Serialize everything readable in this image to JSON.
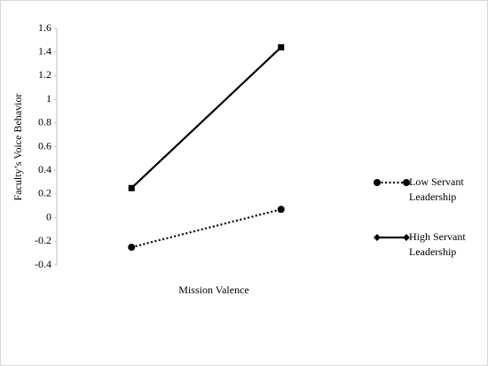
{
  "chart_data": {
    "type": "line",
    "ylabel": "Faculty’s Voice Behavior",
    "xlabel": "Mission Valence",
    "categories": [
      null,
      null
    ],
    "series": [
      {
        "name": "Low Servant Leadership",
        "color": "#000000",
        "dash": "dotted",
        "marker": "circle",
        "values": [
          -0.25,
          0.07
        ]
      },
      {
        "name": "High Servant Leadership",
        "color": "#000000",
        "dash": "solid",
        "marker": "square",
        "values": [
          0.25,
          1.44
        ]
      }
    ],
    "ylim": [
      -0.4,
      1.6
    ],
    "yticks": [
      -0.4,
      -0.2,
      0,
      0.2,
      0.4,
      0.6,
      0.8,
      1,
      1.2,
      1.4,
      1.6
    ],
    "grid": false,
    "legend": "right"
  }
}
